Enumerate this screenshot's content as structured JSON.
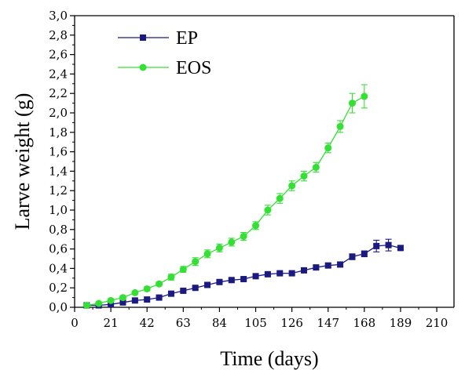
{
  "chart_data": {
    "type": "line",
    "xlabel": "Time (days)",
    "ylabel": "Larve weight (g)",
    "xlim": [
      0,
      220
    ],
    "ylim": [
      0,
      3.0
    ],
    "x_ticks": [
      "0",
      "21",
      "42",
      "63",
      "84",
      "105",
      "126",
      "147",
      "168",
      "189",
      "210"
    ],
    "y_ticks": [
      "0,0",
      "0,2",
      "0,4",
      "0,6",
      "0,8",
      "1,0",
      "1,2",
      "1,4",
      "1,6",
      "1,8",
      "2,0",
      "2,2",
      "2,4",
      "2,6",
      "2,8",
      "3,0"
    ],
    "grid": false,
    "legend_position": "top-left",
    "series": [
      {
        "name": "EP",
        "color": "#1a1a80",
        "marker": "square",
        "x": [
          7,
          14,
          21,
          28,
          35,
          42,
          49,
          56,
          63,
          70,
          77,
          84,
          91,
          98,
          105,
          112,
          119,
          126,
          133,
          140,
          147,
          154,
          161,
          168,
          175,
          182,
          189
        ],
        "y": [
          0.02,
          0.02,
          0.03,
          0.05,
          0.07,
          0.08,
          0.1,
          0.14,
          0.17,
          0.2,
          0.23,
          0.26,
          0.28,
          0.29,
          0.32,
          0.34,
          0.35,
          0.35,
          0.38,
          0.41,
          0.43,
          0.44,
          0.52,
          0.55,
          0.63,
          0.64,
          0.61
        ],
        "error": [
          0.005,
          0.005,
          0.01,
          0.01,
          0.01,
          0.01,
          0.01,
          0.015,
          0.015,
          0.015,
          0.015,
          0.015,
          0.015,
          0.015,
          0.015,
          0.015,
          0.015,
          0.015,
          0.02,
          0.02,
          0.02,
          0.02,
          0.03,
          0.03,
          0.06,
          0.06,
          0.02
        ]
      },
      {
        "name": "EOS",
        "color": "#33e033",
        "marker": "circle",
        "x": [
          7,
          14,
          21,
          28,
          35,
          42,
          49,
          56,
          63,
          70,
          77,
          84,
          91,
          98,
          105,
          112,
          119,
          126,
          133,
          140,
          147,
          154,
          161,
          168
        ],
        "y": [
          0.02,
          0.04,
          0.07,
          0.1,
          0.15,
          0.19,
          0.24,
          0.31,
          0.39,
          0.47,
          0.55,
          0.61,
          0.67,
          0.73,
          0.84,
          1.0,
          1.12,
          1.25,
          1.35,
          1.44,
          1.64,
          1.86,
          2.1,
          2.17
        ],
        "error": [
          0.01,
          0.01,
          0.01,
          0.015,
          0.015,
          0.02,
          0.02,
          0.03,
          0.03,
          0.04,
          0.04,
          0.04,
          0.04,
          0.04,
          0.04,
          0.05,
          0.05,
          0.05,
          0.05,
          0.05,
          0.05,
          0.06,
          0.1,
          0.12
        ]
      }
    ]
  }
}
